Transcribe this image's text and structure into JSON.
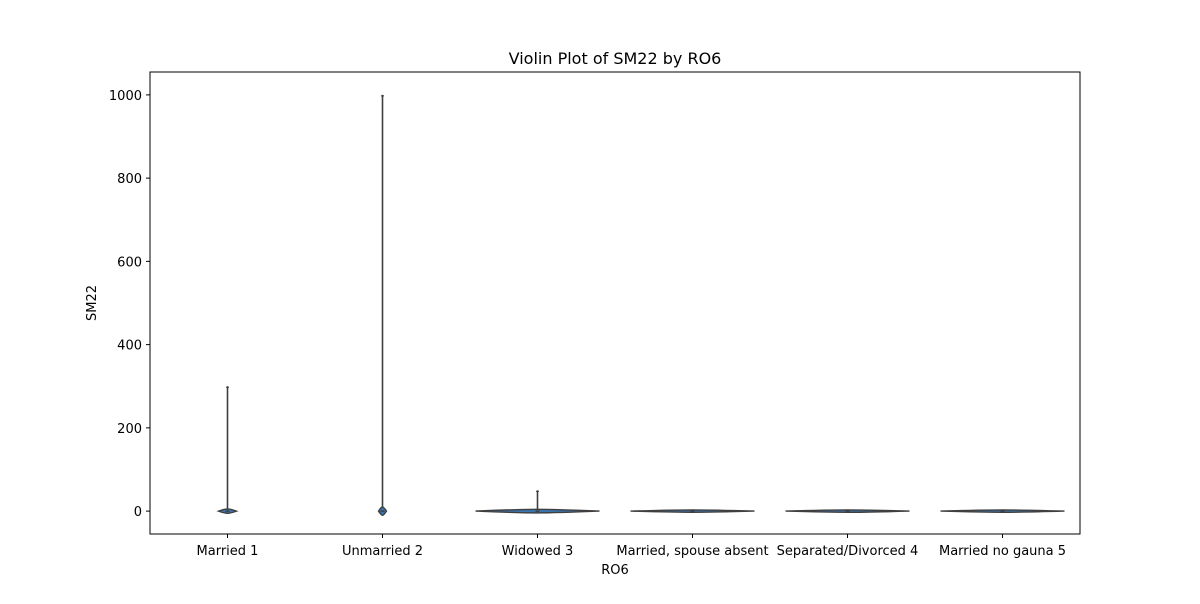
{
  "chart_data": {
    "type": "violin",
    "title": "Violin Plot of SM22 by RO6",
    "xlabel": "RO6",
    "ylabel": "SM22",
    "categories": [
      "Married 1",
      "Unmarried 2",
      "Widowed 3",
      "Married, spouse absent",
      "Separated/Divorced 4",
      "Married no gauna 5"
    ],
    "ylim": [
      -55,
      1055
    ],
    "yticks": [
      0,
      200,
      400,
      600,
      800,
      1000
    ],
    "grid": false,
    "series": [
      {
        "category": "Married 1",
        "min": 0,
        "max": 300,
        "bulk_high": 0
      },
      {
        "category": "Unmarried 2",
        "min": 0,
        "max": 1000,
        "bulk_high": 0
      },
      {
        "category": "Widowed 3",
        "min": 0,
        "max": 50,
        "bulk_high": 0
      },
      {
        "category": "Married, spouse absent",
        "min": 0,
        "max": 0,
        "bulk_high": 0
      },
      {
        "category": "Separated/Divorced 4",
        "min": 0,
        "max": 0,
        "bulk_high": 0
      },
      {
        "category": "Married no gauna 5",
        "min": 0,
        "max": 0,
        "bulk_high": 0
      }
    ],
    "colors": {
      "violin_fill": "#3b75af",
      "violin_edge": "#3f3f3f",
      "axis": "#000000"
    }
  }
}
